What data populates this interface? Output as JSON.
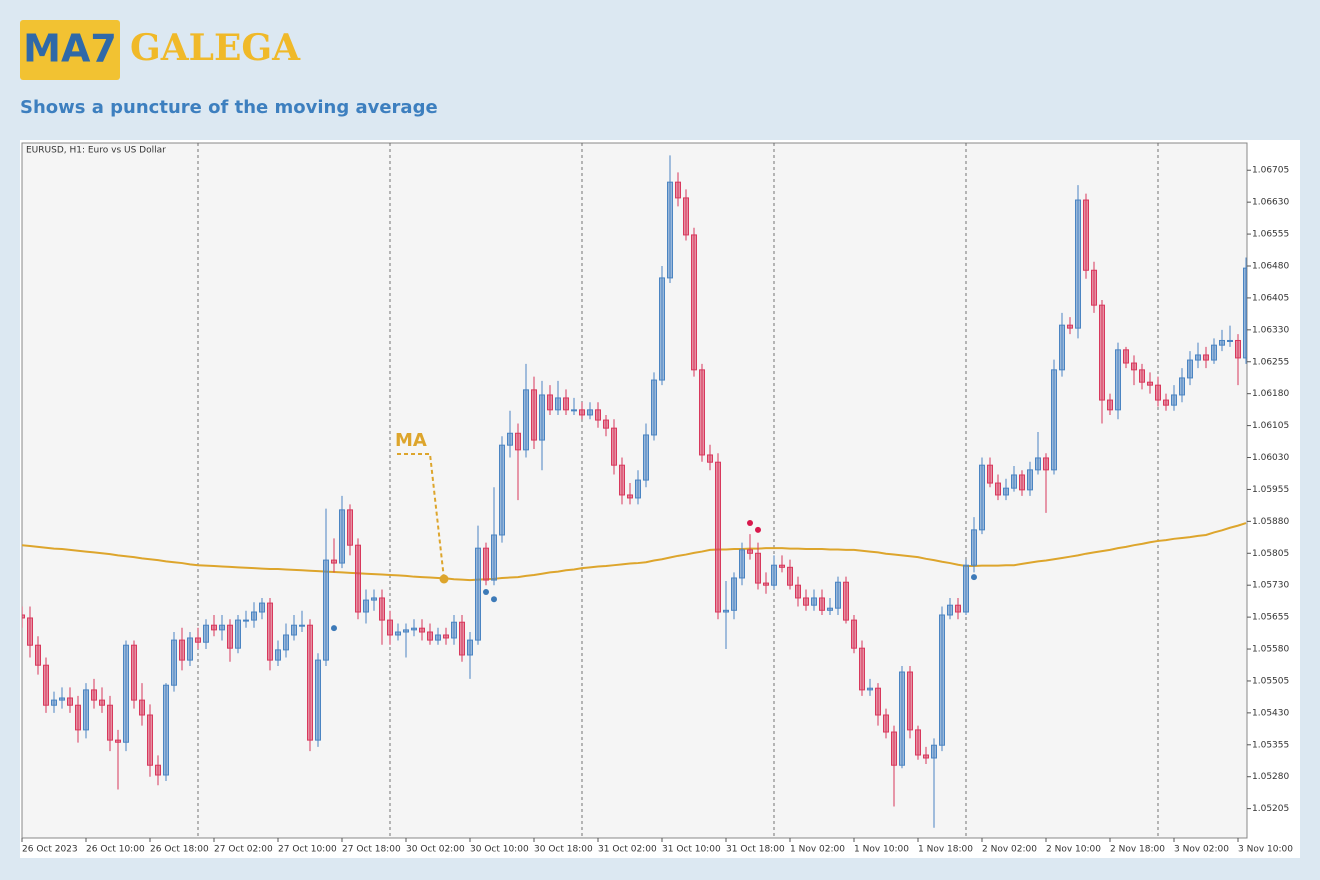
{
  "header": {
    "badge": "MA7",
    "brand": "GALEGA",
    "subtitle": "Shows a puncture of the moving average"
  },
  "chart_data": {
    "type": "candlestick",
    "title": "EURUSD, H1:  Euro vs US Dollar",
    "categories": [
      "26 Oct 2023",
      null,
      null,
      null,
      null,
      null,
      null,
      null,
      "26 Oct 10:00",
      null,
      null,
      null,
      null,
      null,
      null,
      null,
      "26 Oct 18:00",
      null,
      null,
      null,
      null,
      null,
      null,
      null,
      "27 Oct 02:00",
      null,
      null,
      null,
      null,
      null,
      null,
      null,
      "27 Oct 10:00",
      null,
      null,
      null,
      null,
      null,
      null,
      null,
      "27 Oct 18:00",
      null,
      null,
      null,
      null,
      null,
      null,
      null,
      "30 Oct 02:00",
      null,
      null,
      null,
      null,
      null,
      null,
      null,
      "30 Oct 10:00",
      null,
      null,
      null,
      null,
      null,
      null,
      null,
      "30 Oct 18:00",
      null,
      null,
      null,
      null,
      null,
      null,
      null,
      "31 Oct 02:00",
      null,
      null,
      null,
      null,
      null,
      null,
      null,
      "31 Oct 10:00",
      null,
      null,
      null,
      null,
      null,
      null,
      null,
      "31 Oct 18:00",
      null,
      null,
      null,
      null,
      null,
      null,
      null,
      "1 Nov 02:00",
      null,
      null,
      null,
      null,
      null,
      null,
      null,
      "1 Nov 10:00",
      null,
      null,
      null,
      null,
      null,
      null,
      null,
      "1 Nov 18:00",
      null,
      null,
      null,
      null,
      null,
      null,
      null,
      "2 Nov 02:00",
      null,
      null,
      null,
      null,
      null,
      null,
      null,
      "2 Nov 10:00",
      null,
      null,
      null,
      null,
      null,
      null,
      null,
      "2 Nov 18:00",
      null,
      null,
      null,
      null,
      null,
      null,
      null,
      "3 Nov 02:00",
      null,
      null,
      null,
      null,
      null,
      null,
      null,
      "3 Nov 10:00",
      null
    ],
    "open": [
      1.0566,
      1.05653,
      1.05589,
      1.05542,
      1.05448,
      1.0546,
      1.05465,
      1.05448,
      1.0539,
      1.05484,
      1.0546,
      1.05448,
      1.05366,
      1.05361,
      1.05589,
      1.0546,
      1.05425,
      1.05307,
      1.05284,
      1.05495,
      1.05601,
      1.05554,
      1.05606,
      1.05596,
      1.05636,
      1.05625,
      1.05636,
      1.05582,
      1.05648,
      1.05648,
      1.05667,
      1.05688,
      1.05554,
      1.05578,
      1.05613,
      1.05636,
      1.05636,
      1.05366,
      1.05554,
      1.05789,
      1.05782,
      1.05907,
      1.05824,
      1.05667,
      1.05695,
      1.057,
      1.05648,
      1.05613,
      1.0562,
      1.05625,
      1.05629,
      1.0562,
      1.05601,
      1.05613,
      1.05606,
      1.05643,
      1.05566,
      1.05601,
      1.05817,
      1.05742,
      1.05848,
      1.06059,
      1.06087,
      1.06048,
      1.06189,
      1.06071,
      1.06177,
      1.06142,
      1.0617,
      1.06142,
      1.06142,
      1.0613,
      1.06142,
      1.06118,
      1.06099,
      1.06012,
      1.05942,
      1.05935,
      1.05977,
      1.06083,
      1.06212,
      1.06452,
      1.06677,
      1.0664,
      1.06553,
      1.06236,
      1.06036,
      1.06019,
      1.05667,
      1.05671,
      1.05747,
      1.05813,
      1.05805,
      1.05735,
      1.0573,
      1.05777,
      1.05772,
      1.0573,
      1.057,
      1.05683,
      1.057,
      1.05671,
      1.05676,
      1.05737,
      1.05648,
      1.05582,
      1.05484,
      1.05488,
      1.05425,
      1.05385,
      1.05307,
      1.05526,
      1.0539,
      1.05331,
      1.05324,
      1.05354,
      1.0566,
      1.05683,
      1.05667,
      1.05777,
      1.0586,
      1.06012,
      1.0597,
      1.05942,
      1.05958,
      1.05989,
      1.05954,
      1.06001,
      1.06029,
      1.06001,
      1.06236,
      1.06341,
      1.06334,
      1.06635,
      1.0647,
      1.06388,
      1.06165,
      1.06142,
      1.06283,
      1.06252,
      1.06236,
      1.06207,
      1.062,
      1.06165,
      1.06153,
      1.06177,
      1.06217,
      1.06259,
      1.06271,
      1.06259,
      1.06294,
      1.06305,
      1.06305,
      1.06264
    ],
    "high": [
      1.0568,
      1.0568,
      1.0561,
      1.0556,
      1.0548,
      1.0549,
      1.0549,
      1.0547,
      1.055,
      1.0551,
      1.0549,
      1.0547,
      1.0539,
      1.056,
      1.056,
      1.055,
      1.0545,
      1.0533,
      1.055,
      1.0562,
      1.0563,
      1.0562,
      1.0563,
      1.0565,
      1.0566,
      1.0566,
      1.0565,
      1.0566,
      1.0567,
      1.0569,
      1.057,
      1.057,
      1.056,
      1.0564,
      1.0566,
      1.0567,
      1.0565,
      1.0557,
      1.0591,
      1.0584,
      1.0594,
      1.0592,
      1.0584,
      1.0572,
      1.0572,
      1.0572,
      1.0567,
      1.0564,
      1.0564,
      1.0565,
      1.0565,
      1.0564,
      1.0563,
      1.0563,
      1.0566,
      1.0566,
      1.0562,
      1.0587,
      1.0583,
      1.0596,
      1.0608,
      1.0614,
      1.0611,
      1.0625,
      1.0622,
      1.0621,
      1.062,
      1.0621,
      1.0619,
      1.0617,
      1.0616,
      1.0616,
      1.0616,
      1.0613,
      1.0612,
      1.0603,
      1.0597,
      1.06,
      1.0611,
      1.0623,
      1.0648,
      1.0674,
      1.067,
      1.0666,
      1.0657,
      1.0625,
      1.0606,
      1.0604,
      1.0574,
      1.0576,
      1.0583,
      1.0585,
      1.0583,
      1.0576,
      1.058,
      1.058,
      1.0579,
      1.0575,
      1.0572,
      1.0572,
      1.0572,
      1.057,
      1.0575,
      1.0575,
      1.0566,
      1.056,
      1.0551,
      1.055,
      1.0544,
      1.054,
      1.0554,
      1.0554,
      1.054,
      1.0535,
      1.0537,
      1.0568,
      1.057,
      1.057,
      1.0579,
      1.0589,
      1.0603,
      1.0603,
      1.0599,
      1.0598,
      1.0601,
      1.06,
      1.0602,
      1.0609,
      1.0604,
      1.0626,
      1.0637,
      1.0636,
      1.0667,
      1.0665,
      1.0649,
      1.064,
      1.0618,
      1.063,
      1.0629,
      1.0627,
      1.0625,
      1.0623,
      1.0622,
      1.0618,
      1.062,
      1.0624,
      1.0628,
      1.063,
      1.0629,
      1.0631,
      1.0633,
      1.0634,
      1.0632,
      1.065
    ],
    "low": [
      1.0563,
      1.0556,
      1.0552,
      1.0543,
      1.0543,
      1.0544,
      1.0543,
      1.0536,
      1.0537,
      1.0544,
      1.0543,
      1.0534,
      1.0525,
      1.0534,
      1.0544,
      1.054,
      1.0528,
      1.0526,
      1.0527,
      1.0548,
      1.0553,
      1.0554,
      1.0558,
      1.0558,
      1.0561,
      1.056,
      1.0555,
      1.0557,
      1.0563,
      1.0563,
      1.0565,
      1.0553,
      1.0554,
      1.0556,
      1.056,
      1.0562,
      1.0534,
      1.0535,
      1.0554,
      1.0576,
      1.0577,
      1.058,
      1.0565,
      1.0564,
      1.0567,
      1.0559,
      1.0559,
      1.056,
      1.0556,
      1.0561,
      1.056,
      1.0559,
      1.0559,
      1.0559,
      1.0559,
      1.0555,
      1.0551,
      1.0559,
      1.0573,
      1.0573,
      1.0583,
      1.0603,
      1.0593,
      1.0603,
      1.0605,
      1.06,
      1.0613,
      1.0613,
      1.0613,
      1.0613,
      1.0612,
      1.0612,
      1.061,
      1.0608,
      1.0599,
      1.0592,
      1.0592,
      1.0592,
      1.0596,
      1.0607,
      1.062,
      1.0644,
      1.0662,
      1.0654,
      1.0622,
      1.0602,
      1.06,
      1.0565,
      1.0558,
      1.0565,
      1.0573,
      1.0579,
      1.0572,
      1.0571,
      1.0572,
      1.0576,
      1.0572,
      1.0568,
      1.0567,
      1.0567,
      1.0566,
      1.0566,
      1.0566,
      1.0564,
      1.0557,
      1.0547,
      1.0547,
      1.054,
      1.0537,
      1.0521,
      1.053,
      1.0537,
      1.0532,
      1.0531,
      1.0516,
      1.0534,
      1.0565,
      1.0565,
      1.0566,
      1.0576,
      1.0585,
      1.0596,
      1.0593,
      1.0593,
      1.0595,
      1.0594,
      1.0594,
      1.0599,
      1.059,
      1.0599,
      1.0622,
      1.0632,
      1.0631,
      1.0645,
      1.0637,
      1.0611,
      1.0613,
      1.0612,
      1.0624,
      1.062,
      1.0619,
      1.0618,
      1.0615,
      1.0614,
      1.0614,
      1.0616,
      1.062,
      1.0624,
      1.0624,
      1.0625,
      1.0628,
      1.0629,
      1.062,
      1.0625
    ],
    "close": [
      1.05653,
      1.05589,
      1.05542,
      1.05448,
      1.0546,
      1.05465,
      1.05448,
      1.0539,
      1.05484,
      1.0546,
      1.05448,
      1.05366,
      1.05361,
      1.05589,
      1.0546,
      1.05425,
      1.05307,
      1.05284,
      1.05495,
      1.05601,
      1.05554,
      1.05606,
      1.05596,
      1.05636,
      1.05625,
      1.05636,
      1.05582,
      1.05648,
      1.05648,
      1.05667,
      1.05688,
      1.05554,
      1.05578,
      1.05613,
      1.05636,
      1.05636,
      1.05366,
      1.05554,
      1.05789,
      1.05782,
      1.05907,
      1.05824,
      1.05667,
      1.05695,
      1.057,
      1.05648,
      1.05613,
      1.0562,
      1.05625,
      1.05629,
      1.0562,
      1.05601,
      1.05613,
      1.05606,
      1.05643,
      1.05566,
      1.05601,
      1.05817,
      1.05742,
      1.05848,
      1.06059,
      1.06087,
      1.06048,
      1.06189,
      1.06071,
      1.06177,
      1.06142,
      1.0617,
      1.06142,
      1.06142,
      1.0613,
      1.06142,
      1.06118,
      1.06099,
      1.06012,
      1.05942,
      1.05935,
      1.05977,
      1.06083,
      1.06212,
      1.06452,
      1.06677,
      1.0664,
      1.06553,
      1.06236,
      1.06036,
      1.06019,
      1.05667,
      1.05671,
      1.05747,
      1.05813,
      1.05805,
      1.05735,
      1.0573,
      1.05777,
      1.05772,
      1.0573,
      1.057,
      1.05683,
      1.057,
      1.05671,
      1.05676,
      1.05737,
      1.05648,
      1.05582,
      1.05484,
      1.05488,
      1.05425,
      1.05385,
      1.05307,
      1.05526,
      1.0539,
      1.05331,
      1.05324,
      1.05354,
      1.0566,
      1.05683,
      1.05667,
      1.05777,
      1.0586,
      1.06012,
      1.0597,
      1.05942,
      1.05958,
      1.05989,
      1.05954,
      1.06001,
      1.06029,
      1.06001,
      1.06236,
      1.06341,
      1.06334,
      1.06635,
      1.0647,
      1.06388,
      1.06165,
      1.06142,
      1.06283,
      1.06252,
      1.06236,
      1.06207,
      1.062,
      1.06165,
      1.06153,
      1.06177,
      1.06217,
      1.06259,
      1.06271,
      1.06259,
      1.06294,
      1.06305,
      1.06305,
      1.06264,
      1.06475
    ],
    "up_color": "#4a84c2",
    "down_color": "#d8385c",
    "ma": {
      "name": "MA",
      "color": "#dda52c",
      "values": [
        1.05824,
        1.05822,
        1.0582,
        1.05818,
        1.05816,
        1.05815,
        1.05813,
        1.05811,
        1.05809,
        1.05807,
        1.05805,
        1.05803,
        1.058,
        1.05798,
        1.05796,
        1.05793,
        1.05791,
        1.05789,
        1.05786,
        1.05784,
        1.05782,
        1.05779,
        1.05777,
        1.05776,
        1.05775,
        1.05774,
        1.05773,
        1.05772,
        1.05771,
        1.0577,
        1.05769,
        1.05768,
        1.05768,
        1.05767,
        1.05766,
        1.05765,
        1.05764,
        1.05763,
        1.05762,
        1.05761,
        1.0576,
        1.05759,
        1.05758,
        1.05757,
        1.05756,
        1.05755,
        1.05754,
        1.05753,
        1.05752,
        1.0575,
        1.05749,
        1.05748,
        1.05747,
        1.05746,
        1.05744,
        1.05743,
        1.05742,
        1.05743,
        1.05744,
        1.05745,
        1.05747,
        1.05748,
        1.05749,
        1.05752,
        1.05754,
        1.05757,
        1.0576,
        1.05762,
        1.05765,
        1.05767,
        1.0577,
        1.05772,
        1.05774,
        1.05775,
        1.05777,
        1.05779,
        1.05781,
        1.05782,
        1.05784,
        1.05788,
        1.05791,
        1.05795,
        1.05799,
        1.05802,
        1.05806,
        1.05809,
        1.05813,
        1.05814,
        1.05814,
        1.05815,
        1.05815,
        1.05816,
        1.05816,
        1.05817,
        1.05817,
        1.05817,
        1.05816,
        1.05816,
        1.05815,
        1.05815,
        1.05815,
        1.05814,
        1.05814,
        1.05813,
        1.05813,
        1.05811,
        1.05809,
        1.05807,
        1.05804,
        1.05802,
        1.058,
        1.05798,
        1.05796,
        1.05792,
        1.05789,
        1.05785,
        1.05782,
        1.05778,
        1.05775,
        1.05775,
        1.05776,
        1.05776,
        1.05776,
        1.05777,
        1.05777,
        1.0578,
        1.05783,
        1.05786,
        1.05788,
        1.05791,
        1.05794,
        1.05797,
        1.058,
        1.05804,
        1.05807,
        1.0581,
        1.05813,
        1.05817,
        1.0582,
        1.05824,
        1.05827,
        1.05831,
        1.05834,
        1.05836,
        1.05839,
        1.05841,
        1.05843,
        1.05846,
        1.05848,
        1.05854,
        1.05859,
        1.05865,
        1.0587,
        1.05876
      ]
    },
    "signals": [
      {
        "color": "#3d7ab8",
        "x": [
          39,
          58,
          59,
          119
        ],
        "values": [
          1.05629,
          1.05714,
          1.05697,
          1.05749
        ]
      },
      {
        "color": "#d8184c",
        "x": [
          91,
          92
        ],
        "values": [
          1.05876,
          1.0586
        ]
      }
    ],
    "ylim": [
      1.05136,
      1.06769
    ],
    "yticks": [
      1.06705,
      {
        "value": 1.0663,
        "label": "1.06630"
      },
      1.06555,
      {
        "value": 1.0648,
        "label": "1.06480"
      },
      1.06405,
      {
        "value": 1.0633,
        "label": "1.06330"
      },
      1.06255,
      {
        "value": 1.0618,
        "label": "1.06180"
      },
      1.06105,
      {
        "value": 1.0603,
        "label": "1.06030"
      },
      1.05955,
      {
        "value": 1.0588,
        "label": "1.05880"
      },
      1.05805,
      {
        "value": 1.0573,
        "label": "1.05730"
      },
      1.05655,
      {
        "value": 1.0558,
        "label": "1.05580"
      },
      1.05505,
      {
        "value": 1.0543,
        "label": "1.05430"
      },
      1.05355,
      {
        "value": 1.0528,
        "label": "1.05280"
      },
      1.05205
    ]
  }
}
